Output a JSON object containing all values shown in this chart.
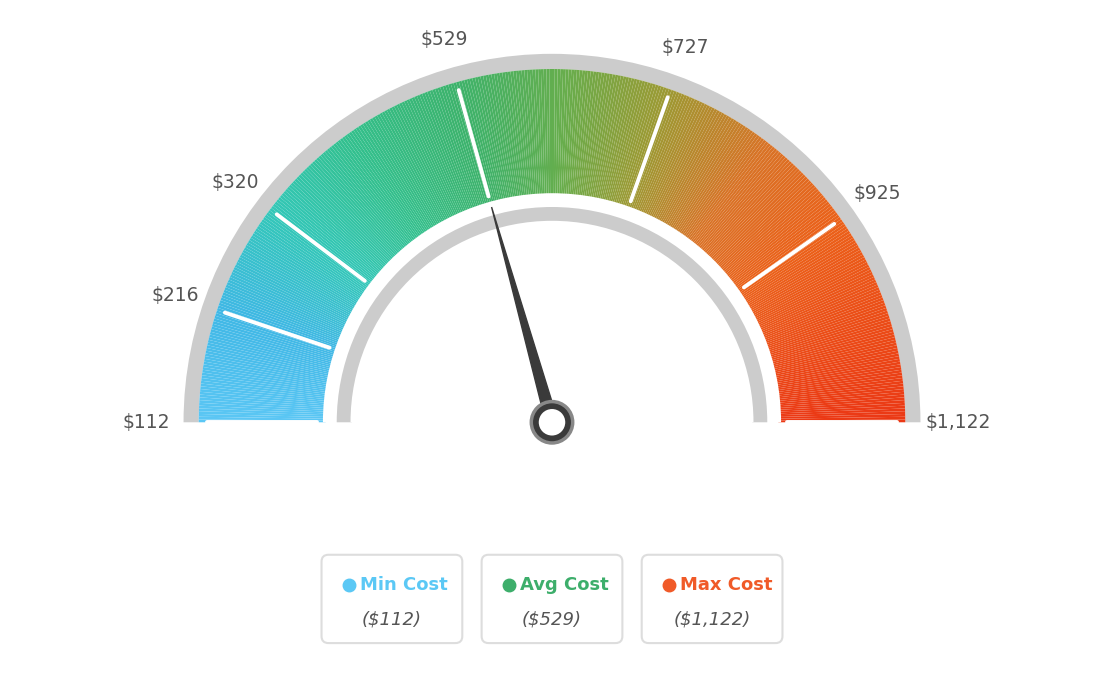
{
  "min_val": 112,
  "max_val": 1122,
  "avg_val": 529,
  "labels": [
    "$112",
    "$216",
    "$320",
    "$529",
    "$727",
    "$925",
    "$1,122"
  ],
  "label_values": [
    112,
    216,
    320,
    529,
    727,
    925,
    1122
  ],
  "min_cost_label": "Min Cost",
  "avg_cost_label": "Avg Cost",
  "max_cost_label": "Max Cost",
  "min_cost_val": "($112)",
  "avg_cost_val": "($529)",
  "max_cost_val": "($1,122)",
  "min_color": "#5BC8F5",
  "avg_color": "#3DAE6B",
  "max_color": "#F05A28",
  "label_color": "#555555",
  "background_color": "#FFFFFF",
  "color_stops": [
    [
      112,
      [
        0.36,
        0.78,
        0.96
      ]
    ],
    [
      216,
      [
        0.25,
        0.72,
        0.9
      ]
    ],
    [
      320,
      [
        0.2,
        0.78,
        0.72
      ]
    ],
    [
      420,
      [
        0.2,
        0.75,
        0.55
      ]
    ],
    [
      529,
      [
        0.24,
        0.7,
        0.42
      ]
    ],
    [
      627,
      [
        0.4,
        0.68,
        0.3
      ]
    ],
    [
      727,
      [
        0.62,
        0.6,
        0.2
      ]
    ],
    [
      830,
      [
        0.85,
        0.45,
        0.15
      ]
    ],
    [
      925,
      [
        0.92,
        0.38,
        0.1
      ]
    ],
    [
      1122,
      [
        0.92,
        0.22,
        0.08
      ]
    ]
  ]
}
